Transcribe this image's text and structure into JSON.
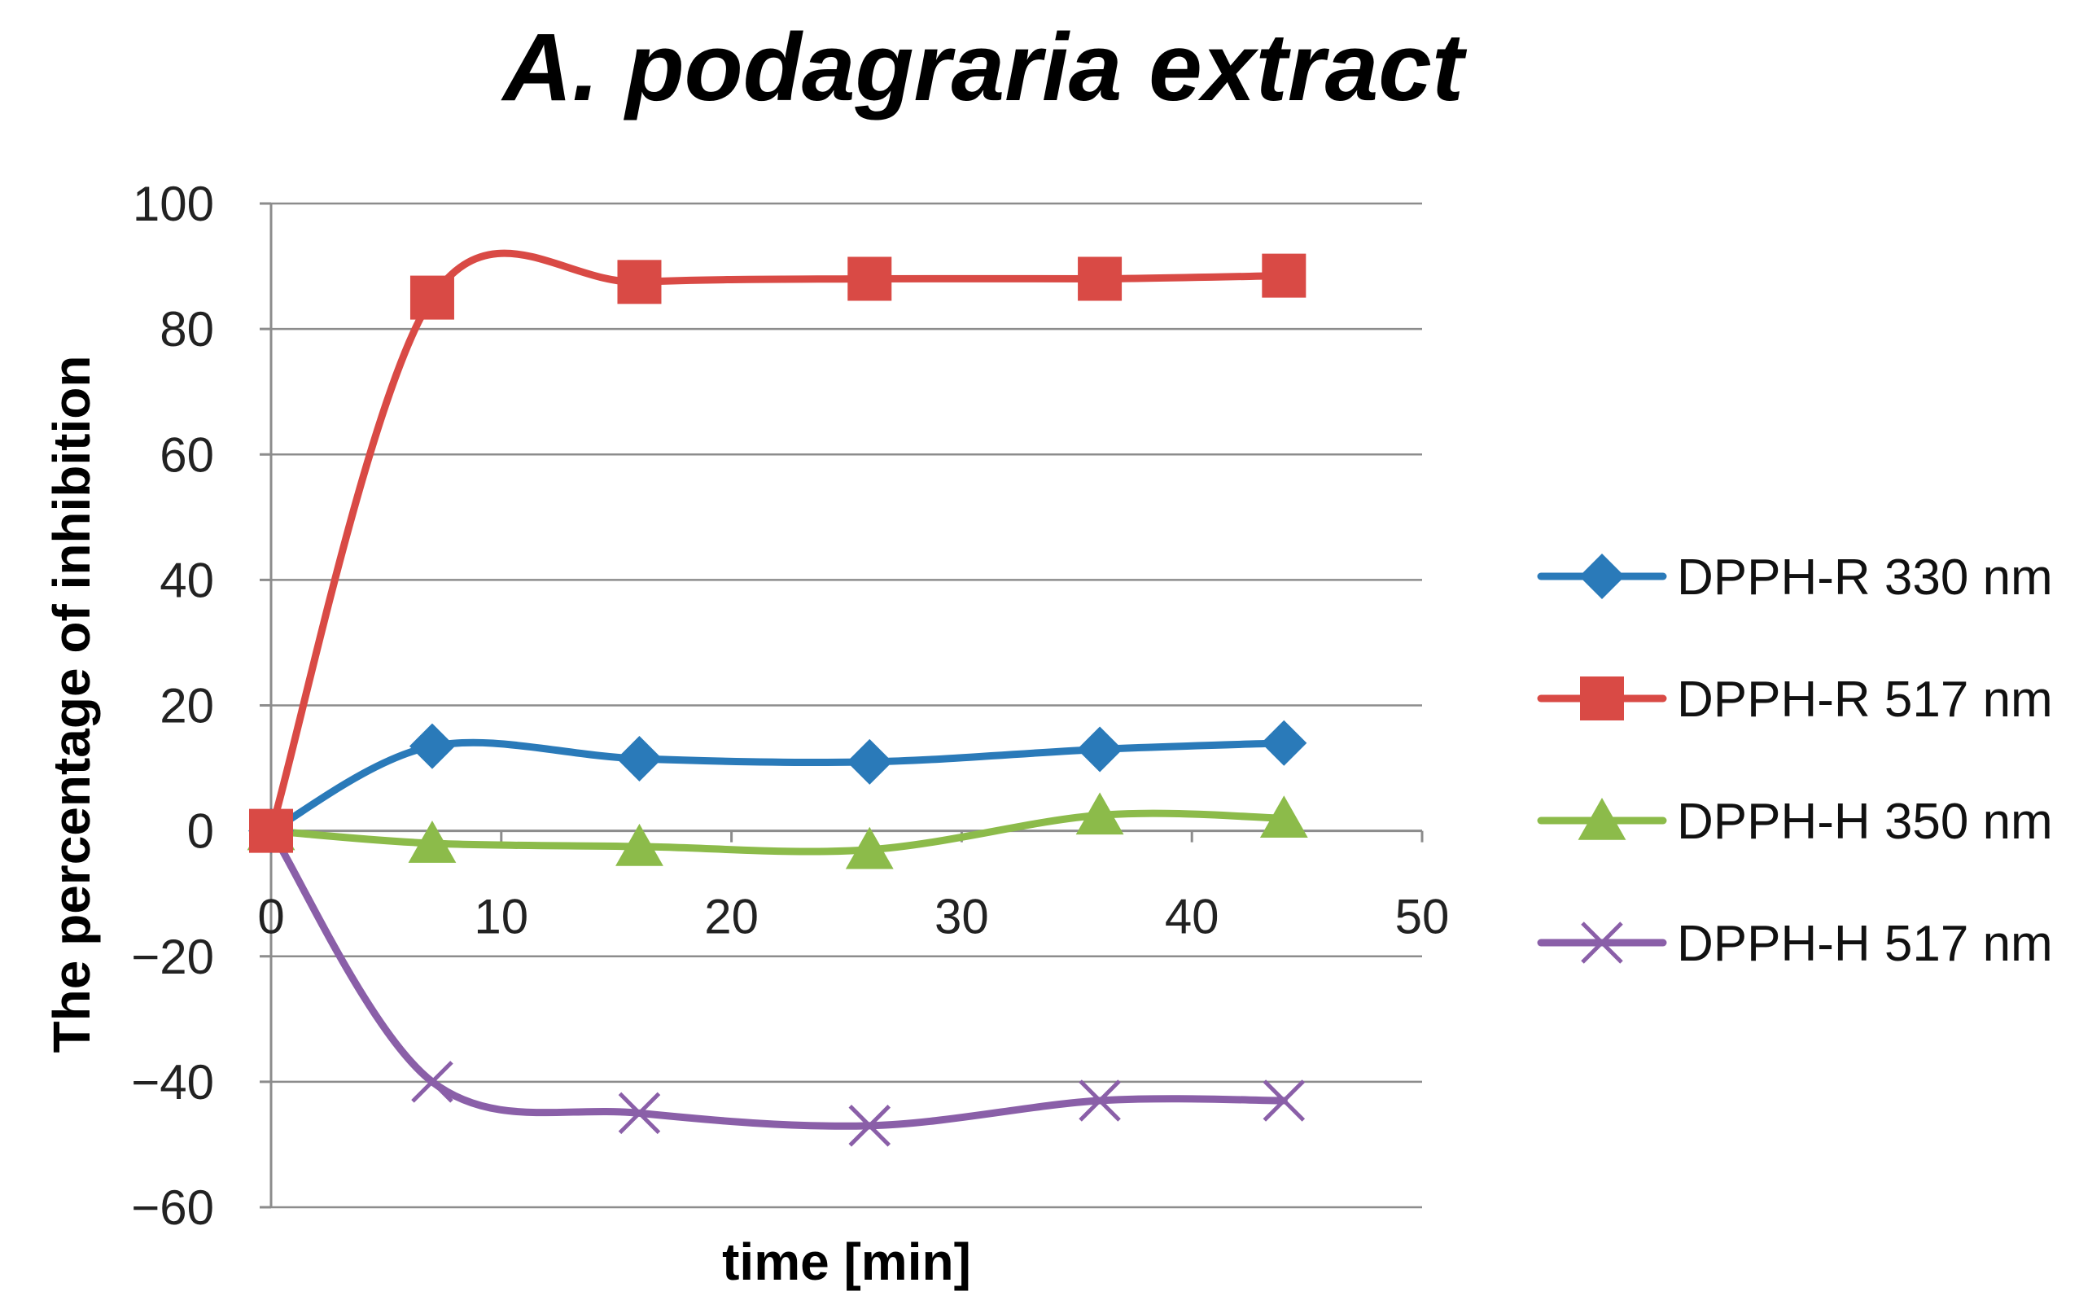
{
  "chart_data": {
    "type": "line",
    "title": "A. podagraria extract",
    "xlabel": "time [min]",
    "ylabel": "The percentage of inhibition",
    "xlim": [
      0,
      50
    ],
    "ylim": [
      -60,
      100
    ],
    "xticks": [
      0,
      10,
      20,
      30,
      40,
      50
    ],
    "yticks": [
      100,
      80,
      60,
      40,
      20,
      0,
      -20,
      -40,
      -60
    ],
    "xtick_labels": [
      "0",
      "10",
      "20",
      "30",
      "40",
      "50"
    ],
    "ytick_labels": [
      "100",
      "80",
      "60",
      "40",
      "20",
      "0",
      "−20",
      "−40",
      "−60"
    ],
    "grid": true,
    "legend_position": "right",
    "x": [
      0,
      7,
      16,
      26,
      36,
      44
    ],
    "series": [
      {
        "name": "DPPH-R 330 nm",
        "marker": "diamond",
        "color": "#2a7ab9",
        "values": [
          0,
          13.5,
          11.5,
          11,
          13,
          14
        ]
      },
      {
        "name": "DPPH-R 517 nm",
        "marker": "square",
        "color": "#d94a45",
        "values": [
          0,
          85,
          87.5,
          88,
          88,
          88.5
        ]
      },
      {
        "name": "DPPH-H 350 nm",
        "marker": "triangle",
        "color": "#8cbb4a",
        "values": [
          0,
          -2,
          -2.5,
          -3,
          2.5,
          2
        ]
      },
      {
        "name": "DPPH-H 517 nm",
        "marker": "x",
        "color": "#8a5fa8",
        "values": [
          0,
          -40,
          -45,
          -47,
          -43,
          -43
        ]
      }
    ]
  }
}
